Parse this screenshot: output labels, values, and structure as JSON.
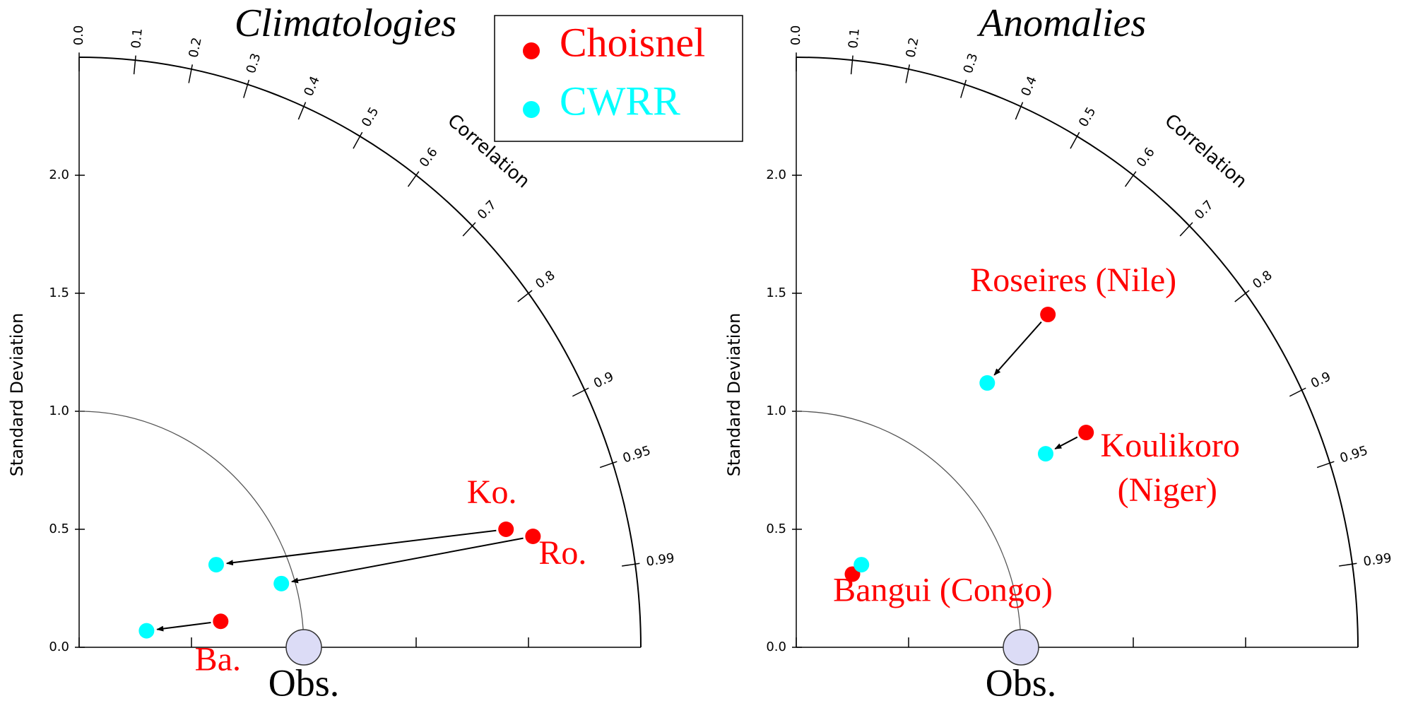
{
  "chart_data": [
    {
      "type": "taylor",
      "title": "Climatologies",
      "ylabel": "Standard Deviation",
      "corr_label": "Correlation",
      "ylim": [
        0,
        2.5
      ],
      "yticks": [
        {
          "value": 0,
          "label": "0.0"
        },
        0.5,
        {
          "value": 1,
          "label": "1.0"
        },
        1.5,
        {
          "value": 2,
          "label": "2.0"
        }
      ],
      "corr_ticks": [
        {
          "value": 0,
          "label": "0.0"
        },
        0.1,
        0.2,
        0.3,
        0.4,
        0.5,
        0.6,
        0.7,
        0.8,
        0.9,
        0.95,
        0.99
      ],
      "obs": {
        "label": "Obs.",
        "value": 1
      },
      "legend": true,
      "series": [
        {
          "name": "Choisnel",
          "color": "#ff0000",
          "x": [
            1.9,
            2.02,
            0.63
          ],
          "values": [
            0.5,
            0.47,
            0.11
          ]
        },
        {
          "name": "CWRR",
          "color": "#00ffff",
          "x": [
            0.61,
            0.9,
            0.3
          ],
          "values": [
            0.35,
            0.27,
            0.07
          ]
        }
      ],
      "station_labels": [
        [
          "Ko."
        ],
        [
          "Ro."
        ],
        [
          "Ba."
        ]
      ]
    },
    {
      "type": "taylor",
      "title": "Anomalies",
      "ylabel": "Standard Deviation",
      "corr_label": "Correlation",
      "ylim": [
        0,
        2.5
      ],
      "yticks": [
        {
          "value": 0,
          "label": "0.0"
        },
        0.5,
        {
          "value": 1,
          "label": "1.0"
        },
        1.5,
        {
          "value": 2,
          "label": "2.0"
        }
      ],
      "corr_ticks": [
        {
          "value": 0,
          "label": "0.0"
        },
        0.1,
        0.2,
        0.3,
        0.4,
        0.5,
        0.6,
        0.7,
        0.8,
        0.9,
        0.95,
        0.99
      ],
      "obs": {
        "label": "Obs.",
        "value": 1
      },
      "legend": false,
      "series": [
        {
          "name": "Choisnel",
          "color": "#ff0000",
          "x": [
            1.12,
            1.29,
            0.25
          ],
          "values": [
            1.41,
            0.91,
            0.31
          ]
        },
        {
          "name": "CWRR",
          "color": "#00ffff",
          "x": [
            0.85,
            1.11,
            0.29
          ],
          "values": [
            1.12,
            0.82,
            0.35
          ]
        }
      ],
      "station_labels": [
        [
          "Roseires (Nile)"
        ],
        [
          "Koulikoro",
          "(Niger)"
        ],
        [
          "Bangui (Congo)"
        ]
      ]
    }
  ]
}
